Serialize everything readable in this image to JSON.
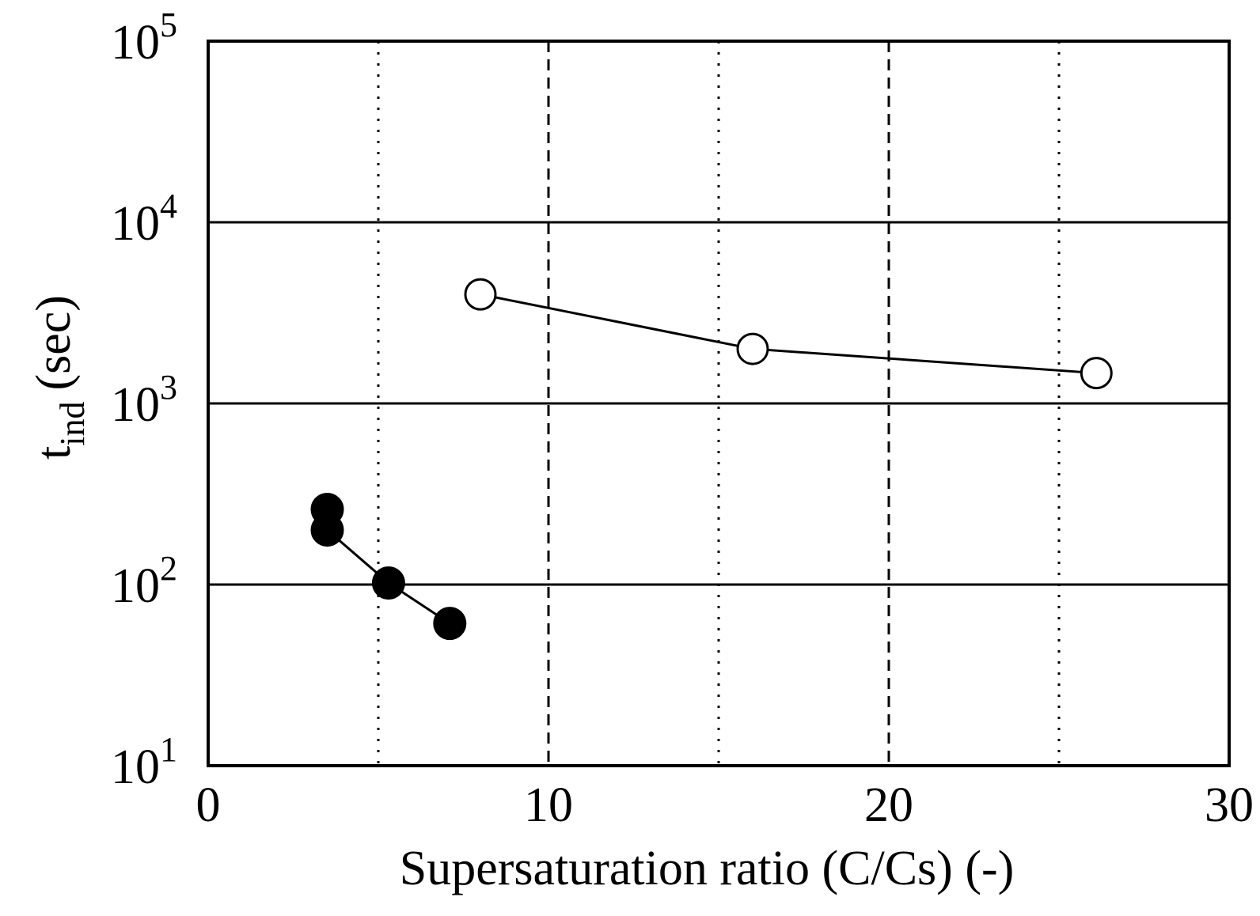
{
  "chart_data": {
    "type": "line",
    "title": "",
    "xlabel": "Supersaturation ratio (C/Cs) (-)",
    "ylabel": {
      "main": "t",
      "subscript": "ind",
      "unit": "(sec)"
    },
    "x_axis": {
      "scale": "linear",
      "range": [
        0,
        30
      ],
      "ticks": [
        0,
        10,
        20,
        30
      ],
      "tick_labels": [
        "0",
        "10",
        "20",
        "30"
      ],
      "major_gridlines": [
        10,
        20
      ],
      "major_grid_style": "dashed",
      "minor_gridlines": [
        5,
        15,
        25
      ],
      "minor_grid_style": "dotted"
    },
    "y_axis": {
      "scale": "log",
      "range": [
        10,
        100000
      ],
      "ticks": [
        {
          "value": 10,
          "base": "10",
          "exponent": "1"
        },
        {
          "value": 100,
          "base": "10",
          "exponent": "2"
        },
        {
          "value": 1000,
          "base": "10",
          "exponent": "3"
        },
        {
          "value": 10000,
          "base": "10",
          "exponent": "4"
        },
        {
          "value": 100000,
          "base": "10",
          "exponent": "5"
        }
      ],
      "gridlines": [
        100,
        1000,
        10000
      ],
      "grid_style": "solid"
    },
    "legend": "none",
    "series": [
      {
        "name": "open circles",
        "marker": "open-circle",
        "color": "#000000",
        "points": [
          {
            "x": 8.0,
            "y": 4000
          },
          {
            "x": 16.0,
            "y": 2000
          },
          {
            "x": 26.1,
            "y": 1470
          }
        ]
      },
      {
        "name": "filled circles",
        "marker": "filled-circle",
        "color": "#000000",
        "points": [
          {
            "x": 3.5,
            "y": 260
          },
          {
            "x": 3.5,
            "y": 200
          },
          {
            "x": 5.3,
            "y": 102
          },
          {
            "x": 7.1,
            "y": 61
          }
        ],
        "connected_points": [
          1,
          2,
          3
        ]
      }
    ]
  }
}
